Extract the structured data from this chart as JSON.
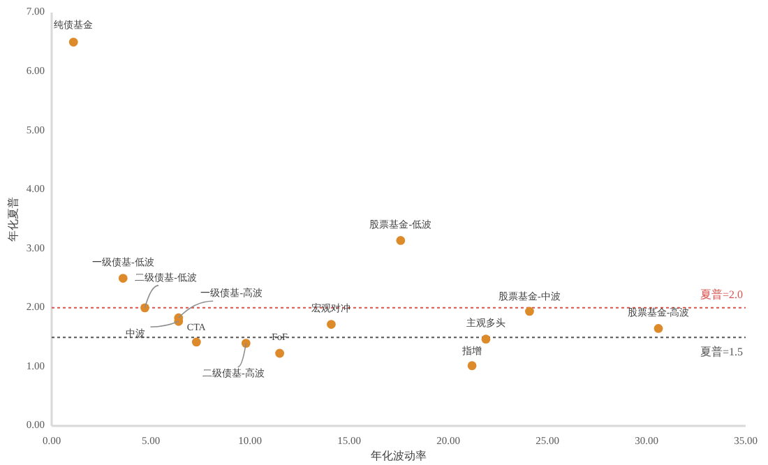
{
  "chart_data": {
    "type": "scatter",
    "xlabel": "年化波动率",
    "ylabel": "年化夏普",
    "xlim": [
      0,
      35
    ],
    "ylim": [
      0,
      7
    ],
    "xticks": [
      {
        "value": 0,
        "label": "0.00"
      },
      {
        "value": 5,
        "label": "5.00"
      },
      {
        "value": 10,
        "label": "10.00"
      },
      {
        "value": 15,
        "label": "15.00"
      },
      {
        "value": 20,
        "label": "20.00"
      },
      {
        "value": 25,
        "label": "25.00"
      },
      {
        "value": 30,
        "label": "30.00"
      },
      {
        "value": 35,
        "label": "35.00"
      }
    ],
    "yticks": [
      {
        "value": 0,
        "label": "0.00"
      },
      {
        "value": 1,
        "label": "1.00"
      },
      {
        "value": 2,
        "label": "2.00"
      },
      {
        "value": 3,
        "label": "3.00"
      },
      {
        "value": 4,
        "label": "4.00"
      },
      {
        "value": 5,
        "label": "5.00"
      },
      {
        "value": 6,
        "label": "6.00"
      },
      {
        "value": 7,
        "label": "7.00"
      }
    ],
    "grid": false,
    "marker": "circle",
    "series": [
      {
        "color": "#dd8a2a",
        "x": [
          1.1,
          3.6,
          4.7,
          6.4,
          6.4,
          7.3,
          9.8,
          11.5,
          14.1,
          17.6,
          24.1,
          21.9,
          21.2,
          30.6
        ],
        "values": [
          6.5,
          2.5,
          2.0,
          1.83,
          1.77,
          1.42,
          1.4,
          1.23,
          1.72,
          3.14,
          1.94,
          1.47,
          1.02,
          1.65
        ]
      }
    ],
    "annotations": [
      {
        "text": "纯债基金",
        "x": 1.1,
        "y": 6.5
      },
      {
        "text": "一级债基-低波",
        "x": 3.6,
        "y": 2.5
      },
      {
        "text": "二级债基-低波",
        "x": 4.7,
        "y": 2.0
      },
      {
        "text": "一级债基-高波",
        "x": 6.4,
        "y": 1.83
      },
      {
        "text": "中波",
        "x": 6.4,
        "y": 1.77
      },
      {
        "text": "CTA",
        "x": 7.3,
        "y": 1.42
      },
      {
        "text": "二级债基-高波",
        "x": 9.8,
        "y": 1.4
      },
      {
        "text": "FoF",
        "x": 11.5,
        "y": 1.23
      },
      {
        "text": "宏观对冲",
        "x": 14.1,
        "y": 1.72
      },
      {
        "text": "股票基金-低波",
        "x": 17.6,
        "y": 3.14
      },
      {
        "text": "股票基金-中波",
        "x": 24.1,
        "y": 1.94
      },
      {
        "text": "主观多头",
        "x": 21.9,
        "y": 1.47
      },
      {
        "text": "指增",
        "x": 21.2,
        "y": 1.02
      },
      {
        "text": "股票基金-高波",
        "x": 30.6,
        "y": 1.65
      }
    ],
    "ref_lines": [
      {
        "axis": "y",
        "value": 2.0,
        "label": "夏普=2.0",
        "color": "#d9534f",
        "line_style": "dotted"
      },
      {
        "axis": "y",
        "value": 1.5,
        "label": "夏普=1.5",
        "color": "#555555",
        "line_style": "dotted"
      }
    ]
  }
}
